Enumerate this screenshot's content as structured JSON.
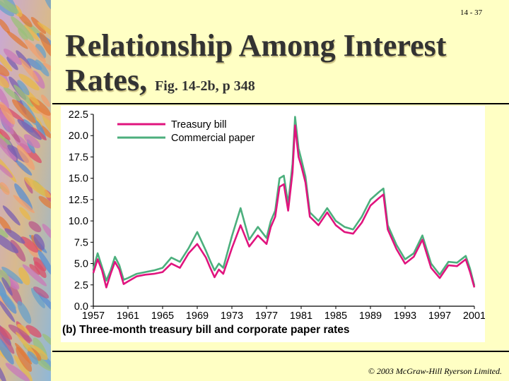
{
  "slide": {
    "number": "14 - 37",
    "title_main": "Relationship Among Interest Rates,",
    "title_sub": "Fig. 14-2b, p 348",
    "footer": "© 2003 McGraw-Hill Ryerson Limited."
  },
  "colors": {
    "background": "#ffffc4",
    "treasury": "#e0147e",
    "commercial": "#4caf7d"
  },
  "chart_data": {
    "type": "line",
    "caption": "(b) Three-month treasury bill and corporate paper rates",
    "xlim": [
      1957,
      2001
    ],
    "ylim": [
      0,
      22.5
    ],
    "x_ticks": [
      "1957",
      "1961",
      "1965",
      "1969",
      "1973",
      "1977",
      "1981",
      "1985",
      "1989",
      "1993",
      "1997",
      "2001"
    ],
    "y_ticks": [
      "0.0",
      "2.5",
      "5.0",
      "7.5",
      "10.0",
      "12.5",
      "15.0",
      "17.5",
      "20.0",
      "22.5"
    ],
    "legend_position": "top-left",
    "series": [
      {
        "name": "Treasury bill",
        "color_key": "treasury",
        "points": [
          [
            1957,
            3.9
          ],
          [
            1957.5,
            5.5
          ],
          [
            1958,
            4.2
          ],
          [
            1958.5,
            2.2
          ],
          [
            1959,
            3.8
          ],
          [
            1959.5,
            5.2
          ],
          [
            1960,
            4.3
          ],
          [
            1960.5,
            2.6
          ],
          [
            1961,
            2.9
          ],
          [
            1962,
            3.5
          ],
          [
            1963,
            3.7
          ],
          [
            1964,
            3.8
          ],
          [
            1965,
            4.0
          ],
          [
            1966,
            5.0
          ],
          [
            1967,
            4.5
          ],
          [
            1968,
            6.2
          ],
          [
            1969,
            7.3
          ],
          [
            1970,
            5.7
          ],
          [
            1970.5,
            4.5
          ],
          [
            1971,
            3.4
          ],
          [
            1971.5,
            4.3
          ],
          [
            1972,
            3.8
          ],
          [
            1973,
            6.8
          ],
          [
            1974,
            9.5
          ],
          [
            1975,
            7.0
          ],
          [
            1976,
            8.3
          ],
          [
            1977,
            7.3
          ],
          [
            1977.5,
            9.3
          ],
          [
            1978,
            10.5
          ],
          [
            1978.5,
            14.0
          ],
          [
            1979,
            14.3
          ],
          [
            1979.5,
            11.2
          ],
          [
            1980,
            15.7
          ],
          [
            1980.3,
            21.2
          ],
          [
            1980.7,
            17.5
          ],
          [
            1981,
            16.5
          ],
          [
            1981.5,
            14.5
          ],
          [
            1982,
            10.5
          ],
          [
            1983,
            9.5
          ],
          [
            1984,
            11.0
          ],
          [
            1985,
            9.5
          ],
          [
            1986,
            8.7
          ],
          [
            1987,
            8.5
          ],
          [
            1988,
            9.8
          ],
          [
            1989,
            11.8
          ],
          [
            1990,
            12.7
          ],
          [
            1990.5,
            13.1
          ],
          [
            1991,
            9.0
          ],
          [
            1992,
            6.7
          ],
          [
            1993,
            5.0
          ],
          [
            1994,
            5.8
          ],
          [
            1995,
            7.8
          ],
          [
            1996,
            4.5
          ],
          [
            1997,
            3.3
          ],
          [
            1998,
            4.8
          ],
          [
            1999,
            4.7
          ],
          [
            2000,
            5.5
          ],
          [
            2000.5,
            4.0
          ],
          [
            2001,
            2.2
          ]
        ]
      },
      {
        "name": "Commercial paper",
        "color_key": "commercial",
        "points": [
          [
            1957,
            4.3
          ],
          [
            1957.5,
            6.2
          ],
          [
            1958,
            4.6
          ],
          [
            1958.5,
            3.0
          ],
          [
            1959,
            4.2
          ],
          [
            1959.5,
            5.8
          ],
          [
            1960,
            4.8
          ],
          [
            1960.5,
            3.1
          ],
          [
            1961,
            3.3
          ],
          [
            1962,
            3.8
          ],
          [
            1963,
            4.0
          ],
          [
            1964,
            4.2
          ],
          [
            1965,
            4.5
          ],
          [
            1966,
            5.7
          ],
          [
            1967,
            5.2
          ],
          [
            1968,
            6.8
          ],
          [
            1969,
            8.7
          ],
          [
            1970,
            6.5
          ],
          [
            1970.5,
            5.3
          ],
          [
            1971,
            4.2
          ],
          [
            1971.5,
            5.0
          ],
          [
            1972,
            4.5
          ],
          [
            1973,
            8.2
          ],
          [
            1974,
            11.5
          ],
          [
            1975,
            7.8
          ],
          [
            1976,
            9.3
          ],
          [
            1977,
            8.0
          ],
          [
            1977.5,
            10.0
          ],
          [
            1978,
            11.2
          ],
          [
            1978.5,
            15.0
          ],
          [
            1979,
            15.3
          ],
          [
            1979.5,
            12.0
          ],
          [
            1980,
            16.7
          ],
          [
            1980.3,
            22.2
          ],
          [
            1980.7,
            18.5
          ],
          [
            1981,
            17.3
          ],
          [
            1981.5,
            15.2
          ],
          [
            1982,
            11.0
          ],
          [
            1983,
            10.0
          ],
          [
            1984,
            11.5
          ],
          [
            1985,
            10.0
          ],
          [
            1986,
            9.3
          ],
          [
            1987,
            9.0
          ],
          [
            1988,
            10.5
          ],
          [
            1989,
            12.5
          ],
          [
            1990,
            13.4
          ],
          [
            1990.5,
            13.8
          ],
          [
            1991,
            9.5
          ],
          [
            1992,
            7.2
          ],
          [
            1993,
            5.5
          ],
          [
            1994,
            6.2
          ],
          [
            1995,
            8.3
          ],
          [
            1996,
            5.0
          ],
          [
            1997,
            3.7
          ],
          [
            1998,
            5.2
          ],
          [
            1999,
            5.1
          ],
          [
            2000,
            5.9
          ],
          [
            2000.5,
            4.4
          ],
          [
            2001,
            2.4
          ]
        ]
      }
    ]
  }
}
